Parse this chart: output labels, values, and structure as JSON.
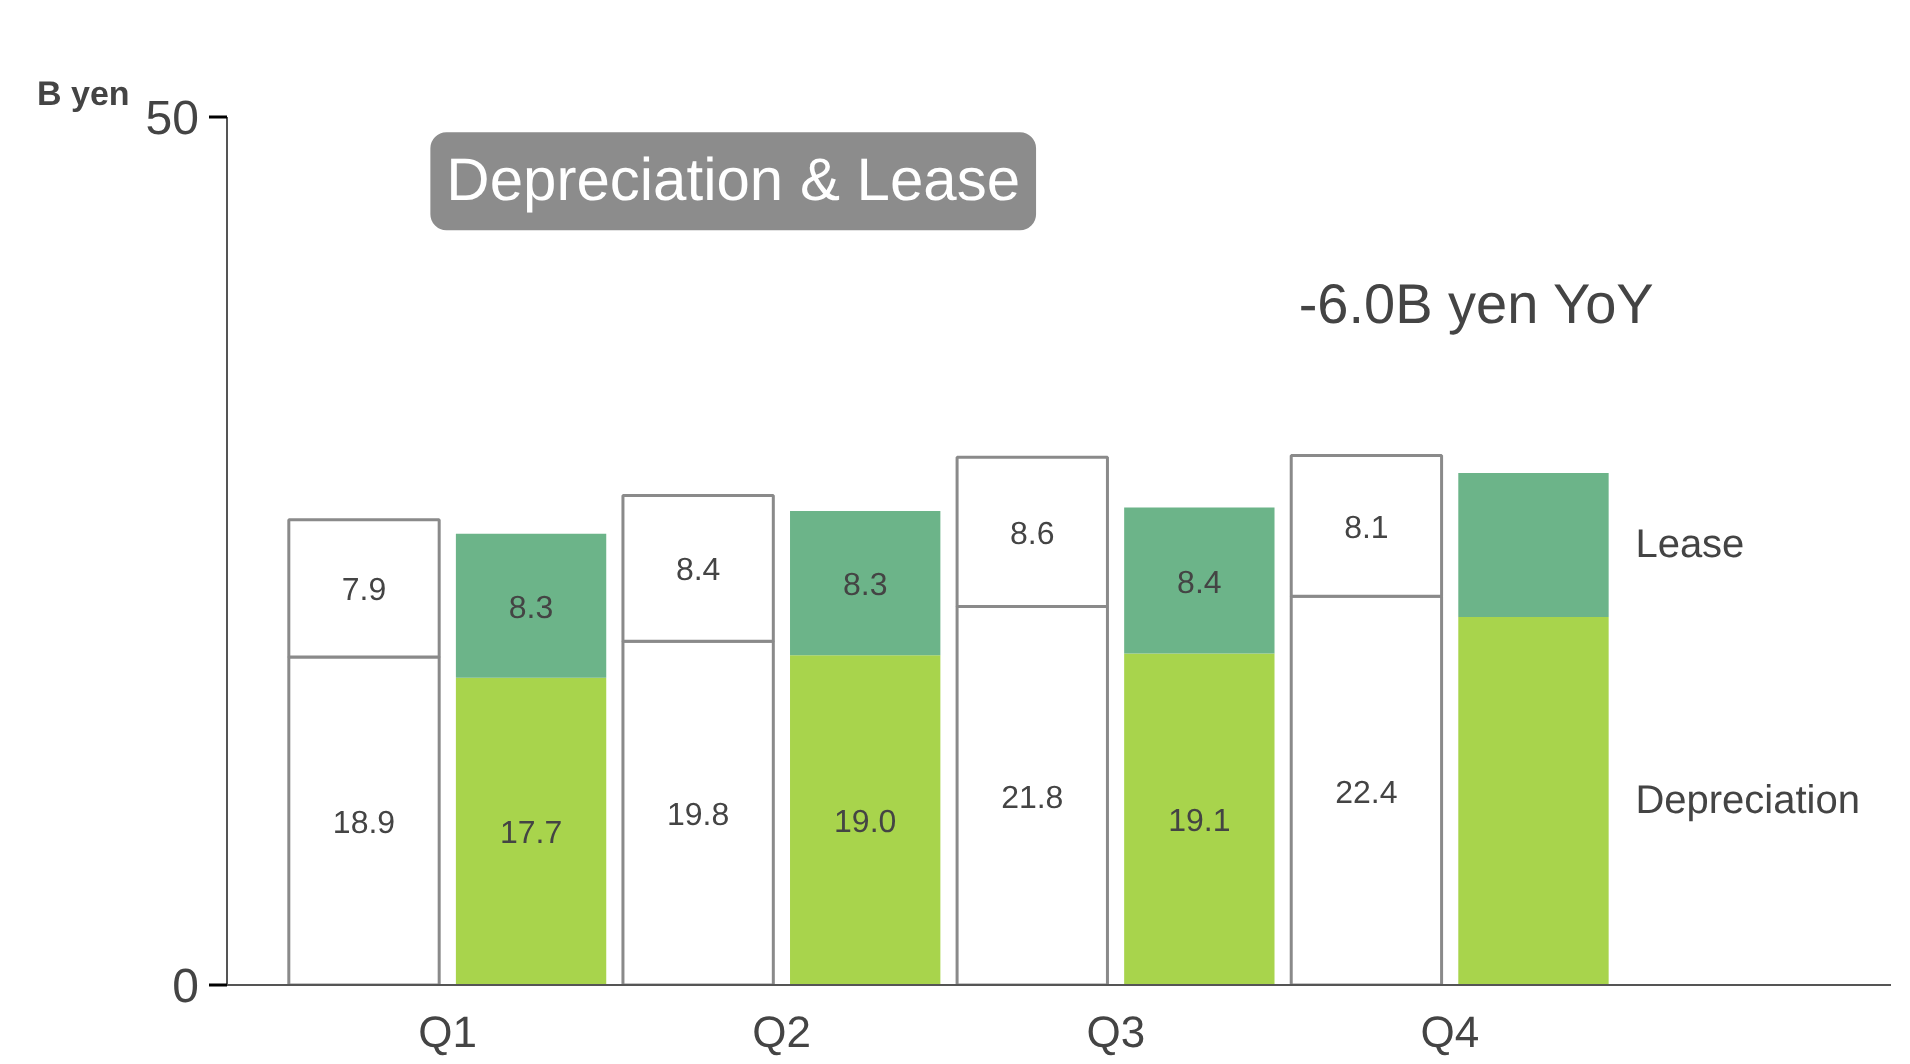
{
  "chart_data": {
    "type": "bar",
    "title": "Depreciation & Lease",
    "ylabel": "B yen",
    "annotations": [
      "-6.0B yen YoY"
    ],
    "stacked": true,
    "categories": [
      "Q1",
      null,
      "Q2",
      null,
      "Q3",
      null,
      "Q4",
      null
    ],
    "ylim": [
      0,
      50
    ],
    "yticks": [
      0,
      50
    ],
    "grid": false,
    "series": [
      {
        "name": "Depreciation",
        "colors": [
          "#ffffff",
          "#a8d44c",
          "#ffffff",
          "#a8d44c",
          "#ffffff",
          "#a8d44c",
          "#ffffff",
          "#a8d44c"
        ],
        "values": [
          18.9,
          17.7,
          19.8,
          19.0,
          21.8,
          19.1,
          22.4,
          21.2
        ],
        "value_labels": [
          "18.9",
          "17.7",
          "19.8",
          "19.0",
          "21.8",
          "19.1",
          "22.4",
          null
        ]
      },
      {
        "name": "Lease",
        "colors": [
          "#ffffff",
          "#6cb489",
          "#ffffff",
          "#6cb489",
          "#ffffff",
          "#6cb489",
          "#ffffff",
          "#6cb489"
        ],
        "values": [
          7.9,
          8.3,
          8.4,
          8.3,
          8.6,
          8.4,
          8.1,
          8.3
        ],
        "value_labels": [
          "7.9",
          "8.3",
          "8.4",
          "8.3",
          "8.6",
          "8.4",
          "8.1",
          null
        ]
      }
    ]
  }
}
